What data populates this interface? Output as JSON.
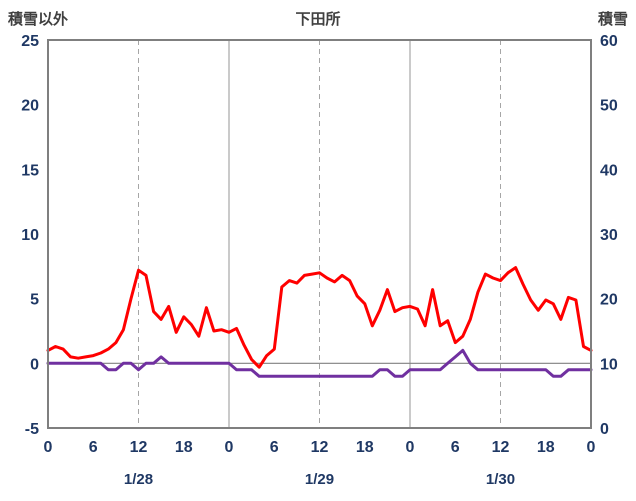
{
  "header": {
    "left_axis_title": "積雪以外",
    "chart_title": "下田所",
    "right_axis_title": "積雪"
  },
  "colors": {
    "header_text": "#404040",
    "axis_text": "#1F3864",
    "grid": "#A6A6A6",
    "border": "#7F7F7F",
    "zero_line": "#808080",
    "background": "#FFFFFF"
  },
  "chart_data": {
    "type": "line",
    "title": "下田所",
    "x_step_hours": 1,
    "x_max_hours": 72,
    "x_ticks": [
      {
        "hour": 0,
        "label": "0"
      },
      {
        "hour": 6,
        "label": "6"
      },
      {
        "hour": 12,
        "label": "12"
      },
      {
        "hour": 18,
        "label": "18"
      },
      {
        "hour": 24,
        "label": "0"
      },
      {
        "hour": 30,
        "label": "6"
      },
      {
        "hour": 36,
        "label": "12"
      },
      {
        "hour": 42,
        "label": "18"
      },
      {
        "hour": 48,
        "label": "0"
      },
      {
        "hour": 54,
        "label": "6"
      },
      {
        "hour": 60,
        "label": "12"
      },
      {
        "hour": 66,
        "label": "18"
      },
      {
        "hour": 72,
        "label": "0"
      }
    ],
    "date_labels": [
      "1/28",
      "1/29",
      "1/30"
    ],
    "gridlines": {
      "dashed_hours": [
        12,
        36,
        60
      ],
      "solid_hours": [
        24,
        48
      ],
      "horizontal_zero_line": true
    },
    "left_axis": {
      "title": "積雪以外",
      "min": -5,
      "max": 25,
      "ticks": [
        25,
        20,
        15,
        10,
        5,
        0,
        -5
      ]
    },
    "right_axis": {
      "title": "積雪",
      "min": 0,
      "max": 60,
      "ticks": [
        60,
        50,
        40,
        30,
        20,
        10,
        0
      ]
    },
    "legend": "none",
    "series": [
      {
        "id": "non-snow",
        "name": "積雪以外",
        "axis": "left",
        "color": "#FF0000",
        "values": [
          1.0,
          1.3,
          1.1,
          0.5,
          0.4,
          0.5,
          0.6,
          0.8,
          1.1,
          1.6,
          2.6,
          5.0,
          7.2,
          6.8,
          4.0,
          3.4,
          4.4,
          2.4,
          3.6,
          3.0,
          2.1,
          4.3,
          2.5,
          2.6,
          2.4,
          2.7,
          1.4,
          0.3,
          -0.3,
          0.6,
          1.1,
          5.9,
          6.4,
          6.2,
          6.8,
          6.9,
          7.0,
          6.6,
          6.3,
          6.8,
          6.4,
          5.2,
          4.6,
          2.9,
          4.1,
          5.7,
          4.0,
          4.3,
          4.4,
          4.2,
          2.9,
          5.7,
          2.9,
          3.3,
          1.6,
          2.1,
          3.4,
          5.5,
          6.9,
          6.6,
          6.4,
          7.0,
          7.4,
          6.1,
          4.9,
          4.1,
          4.9,
          4.6,
          3.4,
          5.1,
          4.9,
          1.3,
          1.0
        ]
      },
      {
        "id": "snow",
        "name": "積雪",
        "axis": "right",
        "color": "#7030A0",
        "values": [
          10,
          10,
          10,
          10,
          10,
          10,
          10,
          10,
          9,
          9,
          10,
          10,
          9,
          10,
          10,
          11,
          10,
          10,
          10,
          10,
          10,
          10,
          10,
          10,
          10,
          9,
          9,
          9,
          8,
          8,
          8,
          8,
          8,
          8,
          8,
          8,
          8,
          8,
          8,
          8,
          8,
          8,
          8,
          8,
          9,
          9,
          8,
          8,
          9,
          9,
          9,
          9,
          9,
          10,
          11,
          12,
          10,
          9,
          9,
          9,
          9,
          9,
          9,
          9,
          9,
          9,
          9,
          8,
          8,
          9,
          9,
          9,
          9
        ]
      }
    ]
  }
}
